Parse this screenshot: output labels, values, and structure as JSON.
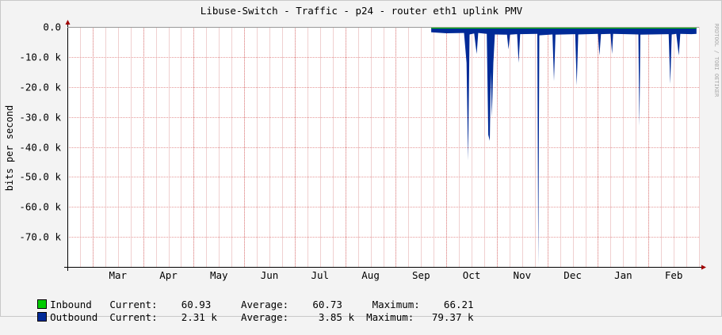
{
  "chart_data": {
    "type": "area",
    "title": "Libuse-Switch - Traffic - p24 - router eth1 uplink PMV",
    "ylabel": "bits per second",
    "watermark": "RRDTOOL / TOBI OETIKER",
    "ylim": [
      -80000,
      0
    ],
    "y_ticks": [
      {
        "value": 0,
        "label": "0.0"
      },
      {
        "value": -10000,
        "label": "-10.0 k"
      },
      {
        "value": -20000,
        "label": "-20.0 k"
      },
      {
        "value": -30000,
        "label": "-30.0 k"
      },
      {
        "value": -40000,
        "label": "-40.0 k"
      },
      {
        "value": -50000,
        "label": "-50.0 k"
      },
      {
        "value": -60000,
        "label": "-60.0 k"
      },
      {
        "value": -70000,
        "label": "-70.0 k"
      }
    ],
    "x_ticks": [
      "Mar",
      "Apr",
      "May",
      "Jun",
      "Jul",
      "Aug",
      "Sep",
      "Oct",
      "Nov",
      "Dec",
      "Jan",
      "Feb"
    ],
    "x_range_months": [
      0,
      12.5
    ],
    "data_start_month": 7.2,
    "series": [
      {
        "name": "Inbound",
        "color": "#00cc00",
        "current": "60.93",
        "average": "60.73",
        "maximum": "66.21",
        "points": [
          [
            7.2,
            -61
          ],
          [
            12.45,
            -61
          ]
        ]
      },
      {
        "name": "Outbound",
        "color": "#002a97",
        "current": "2.31 k",
        "average": "3.85 k",
        "maximum": "79.37 k",
        "points": [
          [
            7.2,
            -1800
          ],
          [
            7.5,
            -2100
          ],
          [
            7.85,
            -2000
          ],
          [
            7.9,
            -12000
          ],
          [
            7.93,
            -44500
          ],
          [
            7.96,
            -2500
          ],
          [
            8.05,
            -2200
          ],
          [
            8.1,
            -9000
          ],
          [
            8.13,
            -2000
          ],
          [
            8.3,
            -2300
          ],
          [
            8.33,
            -36000
          ],
          [
            8.36,
            -38000
          ],
          [
            8.38,
            -15000
          ],
          [
            8.4,
            -30000
          ],
          [
            8.43,
            -12000
          ],
          [
            8.46,
            -2500
          ],
          [
            8.7,
            -2600
          ],
          [
            8.73,
            -7500
          ],
          [
            8.76,
            -2600
          ],
          [
            8.9,
            -2400
          ],
          [
            8.93,
            -12000
          ],
          [
            8.96,
            -2400
          ],
          [
            9.3,
            -2300
          ],
          [
            9.32,
            -79370
          ],
          [
            9.34,
            -2800
          ],
          [
            9.6,
            -2500
          ],
          [
            9.63,
            -18000
          ],
          [
            9.66,
            -2600
          ],
          [
            10.05,
            -2400
          ],
          [
            10.08,
            -19500
          ],
          [
            10.11,
            -2500
          ],
          [
            10.5,
            -2300
          ],
          [
            10.53,
            -9500
          ],
          [
            10.56,
            -2400
          ],
          [
            10.75,
            -2300
          ],
          [
            10.78,
            -9000
          ],
          [
            10.8,
            -2300
          ],
          [
            11.3,
            -2500
          ],
          [
            11.32,
            -33000
          ],
          [
            11.34,
            -2600
          ],
          [
            11.9,
            -2400
          ],
          [
            11.93,
            -19000
          ],
          [
            11.96,
            -2500
          ],
          [
            12.05,
            -2300
          ],
          [
            12.1,
            -9500
          ],
          [
            12.13,
            -2300
          ],
          [
            12.35,
            -2400
          ],
          [
            12.45,
            -2310
          ]
        ]
      }
    ],
    "legend_labels": {
      "current": "Current:",
      "average": "Average:",
      "maximum": "Maximum:"
    }
  }
}
